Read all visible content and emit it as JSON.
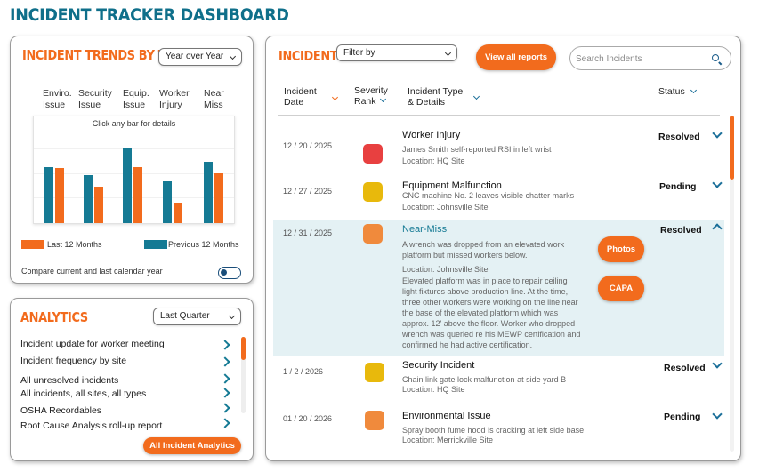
{
  "page": {
    "title": "INCIDENT TRACKER DASHBOARD"
  },
  "colors": {
    "accent": "#f26b1d",
    "teal": "#157a94",
    "title": "#0f6f8a"
  },
  "trends": {
    "title": "INCIDENT TRENDS BY TYPE",
    "period_select": "Year over Year",
    "chart_hint": "Click any bar for details",
    "compare_label": "Compare current and last calendar year",
    "compare_toggle": "off"
  },
  "chart_data": {
    "type": "bar",
    "title": "",
    "categories": [
      "Enviro. Issue",
      "Security Issue",
      "Equip. Issue",
      "Worker Injury",
      "Near Miss"
    ],
    "category_lines": [
      [
        "Enviro.",
        "Issue"
      ],
      [
        "Security",
        "Issue"
      ],
      [
        "Equip.",
        "Issue"
      ],
      [
        "Worker",
        "Injury"
      ],
      [
        "Near",
        "Miss"
      ]
    ],
    "series": [
      {
        "name": "Previous 12 Months",
        "color": "#157a94",
        "values": [
          0.57,
          0.49,
          0.77,
          0.43,
          0.63
        ]
      },
      {
        "name": "Last 12 Months",
        "color": "#f26b1d",
        "values": [
          0.56,
          0.37,
          0.57,
          0.21,
          0.51
        ]
      }
    ],
    "legend": [
      {
        "label": "Last 12 Months",
        "color": "#f26b1d"
      },
      {
        "label": "Previous 12 Months",
        "color": "#157a94"
      }
    ],
    "legend_position": "bottom",
    "grid": true,
    "ylim": [
      0,
      1
    ]
  },
  "analytics": {
    "title": "ANALYTICS",
    "period_select": "Last Quarter",
    "items": [
      "Incident update for worker meeting",
      "Incident frequency by site",
      "All unresolved incidents",
      "All incidents, all sites, all types",
      "OSHA Recordables",
      "Root Cause Analysis roll-up report"
    ],
    "all_button": "All Incident Analytics"
  },
  "incidents": {
    "title": "INCIDENTS",
    "filter_select": "Filter by",
    "view_all": "View all reports",
    "search_placeholder": "Search Incidents",
    "columns": {
      "date_1": "Incident",
      "date_2": "Date",
      "severity_1": "Severity",
      "severity_2": "Rank",
      "type_1": "Incident Type",
      "type_2": "& Details",
      "status": "Status"
    },
    "rows": [
      {
        "date": "12 / 20 / 2025",
        "severity_color": "#e84040",
        "type": "Worker Injury",
        "line1": "James Smith self-reported RSI in left wrist",
        "location": "Location: HQ Site",
        "status": "Resolved"
      },
      {
        "date": "12 / 27 / 2025",
        "severity_color": "#e8b90c",
        "type": "Equipment Malfunction",
        "line1": "CNC machine No. 2 leaves visible chatter marks",
        "location": "Location: Johnsville Site",
        "status": "Pending"
      },
      {
        "date": "12 / 31 / 2025",
        "severity_color": "#f08a3c",
        "type": "Near-Miss",
        "line1": "A wrench was dropped from an elevated work",
        "line2": "platform but missed workers below.",
        "location": "Location: Johnsville Site",
        "status": "Resolved",
        "expanded": [
          "Elevated platform was in place to repair ceiling",
          "light fixtures above production line. At the time,",
          "three other workers were working on the line near",
          "the base of the elevated platform which was",
          "approx. 12' above the floor. Worker who dropped",
          "wrench was queried re his MEWP certification and",
          "confirmed he had active certification."
        ],
        "photos_button": "Photos",
        "capa_button": "CAPA"
      },
      {
        "date": "1 / 2 / 2026",
        "severity_color": "#e8b90c",
        "type": "Security Incident",
        "line1": "Chain link gate lock malfunction at side yard B",
        "location": "Location: HQ Site",
        "status": "Resolved"
      },
      {
        "date": "01 / 20 / 2026",
        "severity_color": "#f08a3c",
        "type": "Environmental Issue",
        "line1": "Spray booth fume hood is cracking at left side base",
        "location": "Location: Merrickville Site",
        "status": "Pending"
      }
    ]
  }
}
